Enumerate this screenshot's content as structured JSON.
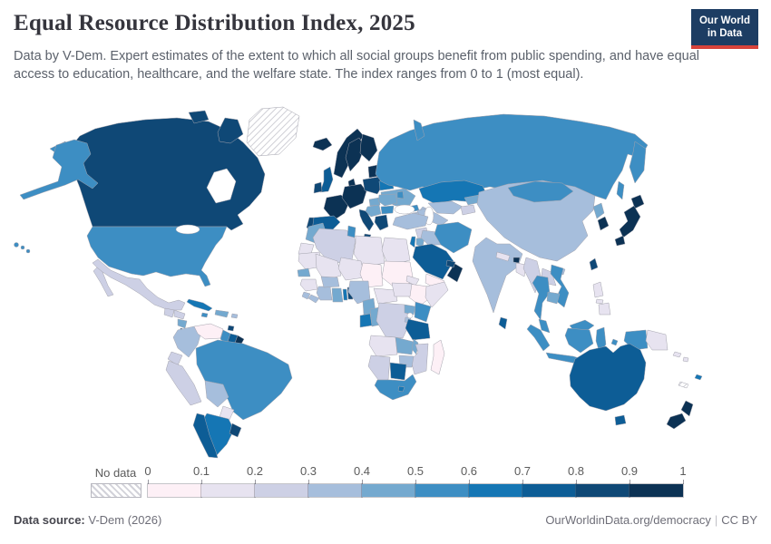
{
  "header": {
    "title": "Equal Resource Distribution Index, 2025",
    "subtitle": "Data by V-Dem. Expert estimates of the extent to which all social groups benefit from public spending, and have equal access to education, healthcare, and the welfare state. The index ranges from 0 to 1 (most equal).",
    "logo": {
      "line1": "Our World",
      "line2": "in Data",
      "bg": "#1d3d63",
      "accent": "#d7433b"
    }
  },
  "legend": {
    "no_data_label": "No data",
    "tick_labels": [
      "0",
      "0.1",
      "0.2",
      "0.3",
      "0.4",
      "0.5",
      "0.6",
      "0.7",
      "0.8",
      "0.9",
      "1"
    ],
    "bin_colors": [
      "#fdf0f6",
      "#e7e3f0",
      "#cdd0e5",
      "#a6bedc",
      "#74a9cf",
      "#3d8ec3",
      "#1576b4",
      "#0d5d96",
      "#0f4876",
      "#0c3254"
    ]
  },
  "footer": {
    "source_label": "Data source:",
    "source_value": "V-Dem (2026)",
    "link": "OurWorldinData.org/democracy",
    "separator": "|",
    "license": "CC BY"
  },
  "map": {
    "countries": {
      "greenland": "no-data",
      "new-caledonia": "no-data",
      "canada": 8,
      "united-states": 5,
      "mexico": 2,
      "guatemala": 2,
      "honduras": 2,
      "nicaragua": 4,
      "costa-rica": 8,
      "panama": 5,
      "cuba": 6,
      "jamaica": 5,
      "dominican-republic": 4,
      "puerto-rico": 3,
      "trinidad-and-tobago": 8,
      "colombia": 3,
      "venezuela": 0,
      "guyana": 5,
      "suriname": 7,
      "french-guiana": 9,
      "ecuador": 2,
      "peru": 2,
      "brazil": 5,
      "bolivia": 3,
      "paraguay": 1,
      "argentina": 6,
      "chile": 7,
      "uruguay": 8,
      "iceland": 9,
      "norway": 9,
      "sweden": 9,
      "finland": 9,
      "denmark": 9,
      "united-kingdom": 7,
      "ireland": 8,
      "france": 9,
      "spain": 7,
      "portugal": 8,
      "germany": 9,
      "italy": 8,
      "poland": 8,
      "baltic-states": 9,
      "hungary": 4,
      "romania": 4,
      "serbia": 4,
      "bulgaria": 5,
      "greece": 8,
      "belarus": 6,
      "ukraine": 4,
      "moldova": 5,
      "russia": 5,
      "kazakhstan": 6,
      "uzbekistan": 3,
      "turkmenistan": 3,
      "kyrgyzstan": 4,
      "tajikistan": 2,
      "georgia": 5,
      "azerbaijan": 3,
      "armenia": 3,
      "turkey": 3,
      "syria": 2,
      "israel": 6,
      "jordan": 4,
      "iraq": 3,
      "iran": 5,
      "saudi-arabia": 7,
      "yemen": 0,
      "oman": 9,
      "united-arab-emirates": 8,
      "morocco": 4,
      "western-sahara": 1,
      "algeria": 2,
      "tunisia": 5,
      "libya": 1,
      "egypt": 1,
      "mauritania": 1,
      "mali": 1,
      "niger": 1,
      "chad": 0,
      "sudan": 0,
      "eritrea": 1,
      "ethiopia": 0,
      "somalia": 1,
      "senegal": 4,
      "guinea": 1,
      "sierra-leone": 3,
      "liberia": 3,
      "cote-divoire": 3,
      "ghana": 4,
      "togo": 6,
      "benin": 8,
      "burkina-faso": 3,
      "nigeria": 3,
      "cameroon": 4,
      "central-african-republic": 1,
      "south-sudan": 1,
      "gabon": 6,
      "congo": 4,
      "democratic-republic-of-congo": 2,
      "uganda": 4,
      "kenya": 5,
      "rwanda": 3,
      "tanzania": 7,
      "angola": 1,
      "zambia": 4,
      "malawi": 4,
      "mozambique": 2,
      "zimbabwe": 3,
      "botswana": 7,
      "namibia": 2,
      "south-africa": 5,
      "lesotho": 6,
      "madagascar": 0,
      "china": 3,
      "mongolia": 5,
      "north-korea": 4,
      "south-korea": 9,
      "japan": 9,
      "taiwan": 8,
      "india": 3,
      "nepal": 1,
      "bhutan": 9,
      "bangladesh": 1,
      "sri-lanka": 7,
      "myanmar": 2,
      "thailand": 5,
      "laos": 2,
      "vietnam": 5,
      "cambodia": 4,
      "malaysia": 5,
      "indonesia": 5,
      "philippines": 1,
      "papua-new-guinea": 1,
      "solomon-islands": 1,
      "australia": 7,
      "new-zealand": 9,
      "fiji": 6
    }
  }
}
